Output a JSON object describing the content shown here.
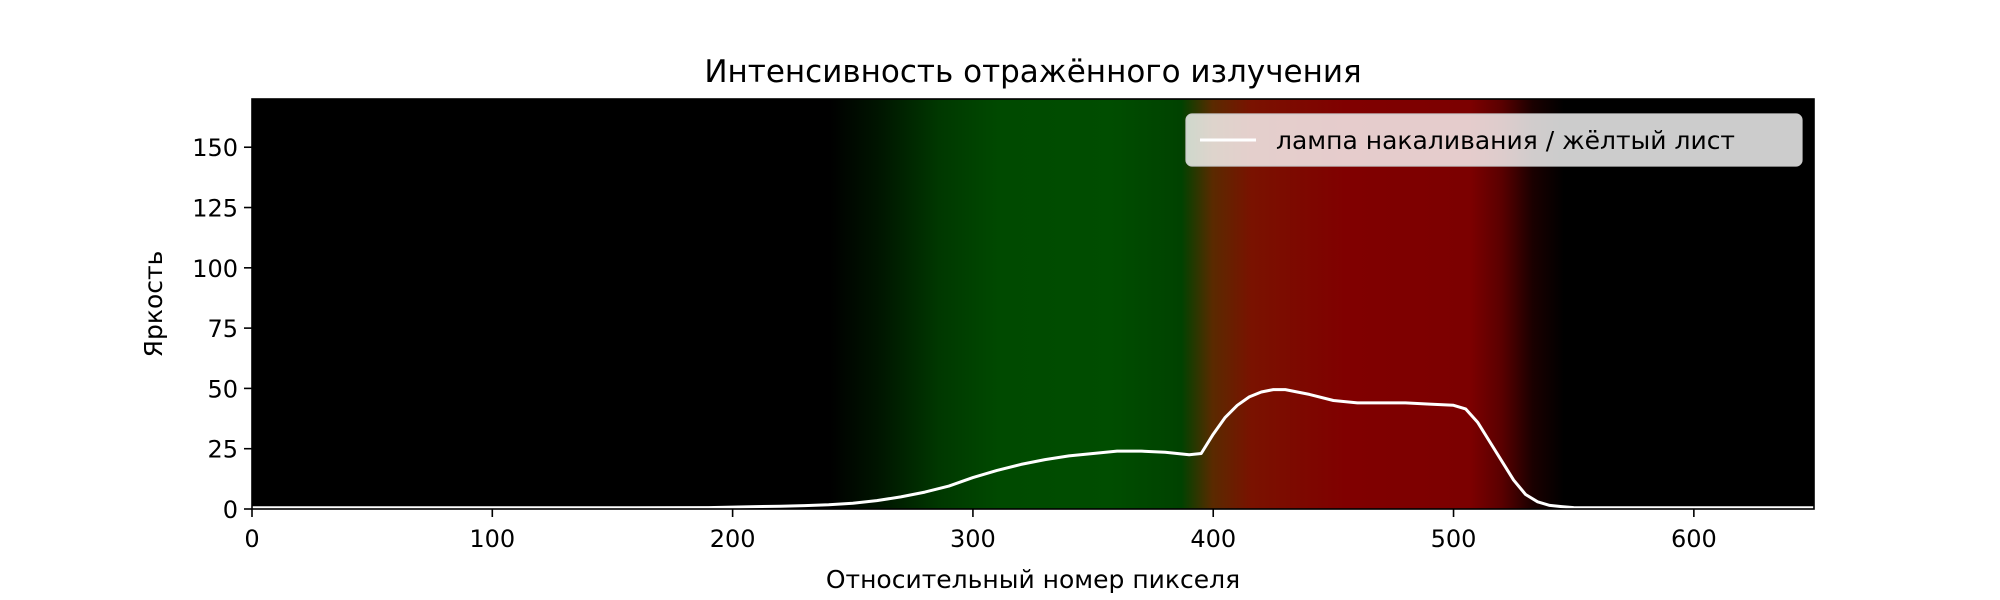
{
  "chart_data": {
    "type": "line",
    "title": "Интенсивность отражённого излучения",
    "xlabel": "Относительный номер пикселя",
    "ylabel": "Яркость",
    "xlim": [
      0,
      650
    ],
    "ylim": [
      0,
      170
    ],
    "xticks": [
      0,
      100,
      200,
      300,
      400,
      500,
      600
    ],
    "yticks": [
      0,
      25,
      50,
      75,
      100,
      125,
      150
    ],
    "grid": false,
    "legend_position": "top-right",
    "background": "spectrum image (black – green – red – black)",
    "series": [
      {
        "name": "лампа накаливания / жёлтый лист",
        "color": "#ffffff",
        "x": [
          0,
          50,
          100,
          150,
          190,
          200,
          210,
          220,
          230,
          240,
          250,
          260,
          270,
          280,
          290,
          300,
          310,
          320,
          330,
          340,
          350,
          360,
          370,
          380,
          390,
          395,
          400,
          405,
          410,
          415,
          420,
          425,
          430,
          435,
          440,
          450,
          460,
          470,
          480,
          490,
          500,
          505,
          510,
          515,
          520,
          525,
          530,
          535,
          540,
          545,
          550,
          560,
          600,
          650
        ],
        "y": [
          0.5,
          0.5,
          0.5,
          0.5,
          0.6,
          0.8,
          1.0,
          1.1,
          1.4,
          1.8,
          2.4,
          3.5,
          5.0,
          7.0,
          9.5,
          13.0,
          16.0,
          18.5,
          20.5,
          22.0,
          23.0,
          24.0,
          24.0,
          23.5,
          22.5,
          23.0,
          31.0,
          38.0,
          43.0,
          46.5,
          48.5,
          49.5,
          49.5,
          48.5,
          47.5,
          45.0,
          44.0,
          44.0,
          44.0,
          43.5,
          43.0,
          41.5,
          36.0,
          28.0,
          20.0,
          12.0,
          6.0,
          3.0,
          1.5,
          1.0,
          0.6,
          0.5,
          0.5,
          0.5
        ]
      }
    ]
  }
}
